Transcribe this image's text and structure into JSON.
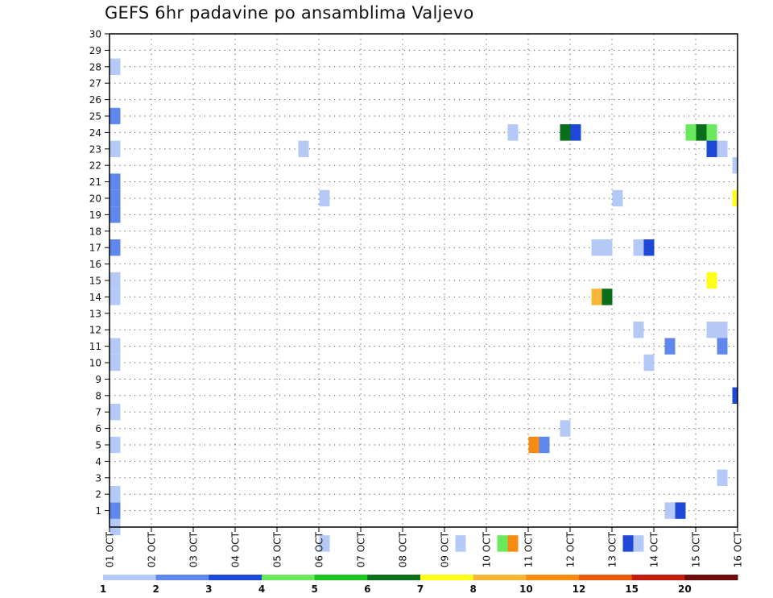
{
  "title": "GEFS 6hr padavine po ansamblima Valjevo",
  "chart_data": {
    "type": "heatmap",
    "title": "GEFS 6hr padavine po ansamblima Valjevo",
    "x_ticks": [
      "01 OCT",
      "02 OCT",
      "03 OCT",
      "04 OCT",
      "05 OCT",
      "06 OCT",
      "07 OCT",
      "08 OCT",
      "09 OCT",
      "10 OCT",
      "11 OCT",
      "12 OCT",
      "13 OCT",
      "14 OCT",
      "15 OCT",
      "16 OCT"
    ],
    "y_ticks": [
      1,
      2,
      3,
      4,
      5,
      6,
      7,
      8,
      9,
      10,
      11,
      12,
      13,
      14,
      15,
      16,
      17,
      18,
      19,
      20,
      21,
      22,
      23,
      24,
      25,
      26,
      27,
      28,
      29,
      30
    ],
    "x_unit": "6-hour steps after 01 OCT 00Z",
    "xlim": [
      0,
      60
    ],
    "ylim": [
      0,
      30
    ],
    "grid": true,
    "colorbar": {
      "levels": [
        1,
        2,
        3,
        4,
        5,
        6,
        7,
        8,
        10,
        12,
        15,
        20
      ],
      "colors": [
        "#b5c9f7",
        "#5f87ec",
        "#1e48d7",
        "#6be95c",
        "#1cc41f",
        "#0b6e1b",
        "#ffff1a",
        "#f9b636",
        "#f58b10",
        "#ea5a08",
        "#c41c0c",
        "#6e0b0b"
      ]
    },
    "cells": [
      {
        "x": 0,
        "y": 0,
        "c": 0
      },
      {
        "x": 0,
        "y": 1,
        "c": 1
      },
      {
        "x": 0,
        "y": 2,
        "c": 0
      },
      {
        "x": 0,
        "y": 5,
        "c": 0
      },
      {
        "x": 0,
        "y": 7,
        "c": 0
      },
      {
        "x": 0,
        "y": 10,
        "c": 0
      },
      {
        "x": 0,
        "y": 11,
        "c": 0
      },
      {
        "x": 0,
        "y": 14,
        "c": 0
      },
      {
        "x": 0,
        "y": 15,
        "c": 0
      },
      {
        "x": 0,
        "y": 17,
        "c": 1
      },
      {
        "x": 0,
        "y": 19,
        "c": 1
      },
      {
        "x": 0,
        "y": 20,
        "c": 1
      },
      {
        "x": 0,
        "y": 21,
        "c": 1
      },
      {
        "x": 0,
        "y": 23,
        "c": 0
      },
      {
        "x": 0,
        "y": 25,
        "c": 1
      },
      {
        "x": 0,
        "y": 28,
        "c": 0
      },
      {
        "x": 18,
        "y": 23,
        "c": 0
      },
      {
        "x": 20,
        "y": 20,
        "c": 0
      },
      {
        "x": 20,
        "y": -1,
        "c": 0
      },
      {
        "x": 33,
        "y": -1,
        "c": 0
      },
      {
        "x": 37,
        "y": -1,
        "c": 3
      },
      {
        "x": 38,
        "y": -1,
        "c": 8
      },
      {
        "x": 38,
        "y": 24,
        "c": 0
      },
      {
        "x": 40,
        "y": 5,
        "c": 8
      },
      {
        "x": 41,
        "y": 5,
        "c": 1
      },
      {
        "x": 43,
        "y": 6,
        "c": 0
      },
      {
        "x": 43,
        "y": 24,
        "c": 5
      },
      {
        "x": 44,
        "y": 24,
        "c": 2
      },
      {
        "x": 46,
        "y": 14,
        "c": 7
      },
      {
        "x": 47,
        "y": 14,
        "c": 5
      },
      {
        "x": 46,
        "y": 17,
        "c": 0
      },
      {
        "x": 47,
        "y": 17,
        "c": 0
      },
      {
        "x": 48,
        "y": 20,
        "c": 0
      },
      {
        "x": 49,
        "y": -1,
        "c": 2
      },
      {
        "x": 50,
        "y": -1,
        "c": 0
      },
      {
        "x": 50,
        "y": 12,
        "c": 0
      },
      {
        "x": 50,
        "y": 17,
        "c": 0
      },
      {
        "x": 51,
        "y": 17,
        "c": 2
      },
      {
        "x": 51,
        "y": 10,
        "c": 0
      },
      {
        "x": 53,
        "y": 11,
        "c": 1
      },
      {
        "x": 53,
        "y": 1,
        "c": 0
      },
      {
        "x": 54,
        "y": 1,
        "c": 2
      },
      {
        "x": 55,
        "y": 24,
        "c": 3
      },
      {
        "x": 56,
        "y": 24,
        "c": 5
      },
      {
        "x": 57,
        "y": 24,
        "c": 3
      },
      {
        "x": 57,
        "y": 23,
        "c": 2
      },
      {
        "x": 58,
        "y": 23,
        "c": 0
      },
      {
        "x": 57,
        "y": 15,
        "c": 6
      },
      {
        "x": 57,
        "y": 12,
        "c": 0
      },
      {
        "x": 58,
        "y": 12,
        "c": 0
      },
      {
        "x": 58,
        "y": 11,
        "c": 1
      },
      {
        "x": 58,
        "y": 3,
        "c": 0
      },
      {
        "x": 60,
        "y": 22,
        "c": 0
      },
      {
        "x": 60,
        "y": 20,
        "c": 6
      },
      {
        "x": 60,
        "y": 8,
        "c": 2
      }
    ]
  }
}
